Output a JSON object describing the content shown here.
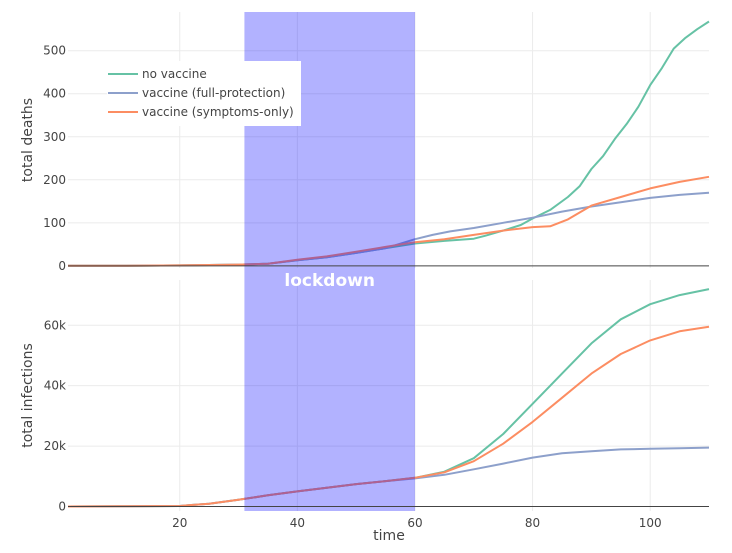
{
  "chart_data": {
    "type": "line",
    "shared_x_label": "time",
    "shaded_region": {
      "label": "lockdown",
      "x_start": 31,
      "x_end": 60,
      "color": "#0000ff",
      "opacity": 0.3
    },
    "legend": {
      "placement": "top-left"
    },
    "x_range": [
      1,
      110
    ],
    "x_ticks": [
      20,
      40,
      60,
      80,
      100
    ],
    "series_styles": [
      {
        "name": "no vaccine",
        "color": "#66c2a5"
      },
      {
        "name": "vaccine (full-protection)",
        "color": "#8da0cb"
      },
      {
        "name": "vaccine (symptoms-only)",
        "color": "#fc8d62"
      }
    ],
    "subplots": [
      {
        "id": "deaths",
        "ylabel": "total deaths",
        "ylim": [
          -5,
          590
        ],
        "yticks": [
          0,
          100,
          200,
          300,
          400,
          500
        ],
        "ytick_labels": [
          "0",
          "100",
          "200",
          "300",
          "400",
          "500"
        ],
        "series": [
          {
            "name": "no vaccine",
            "x": [
              1,
              10,
              20,
              25,
              30,
              35,
              40,
              45,
              50,
              55,
              60,
              65,
              70,
              72,
              75,
              78,
              80,
              83,
              86,
              88,
              90,
              92,
              94,
              96,
              98,
              100,
              102,
              104,
              106,
              108,
              110
            ],
            "y": [
              0,
              0,
              1,
              2,
              3,
              5,
              13,
              20,
              30,
              41,
              52,
              58,
              63,
              70,
              82,
              95,
              110,
              130,
              160,
              185,
              225,
              255,
              295,
              330,
              370,
              420,
              460,
              505,
              530,
              550,
              568
            ]
          },
          {
            "name": "vaccine (full-protection)",
            "x": [
              1,
              10,
              20,
              25,
              30,
              35,
              40,
              45,
              50,
              55,
              60,
              63,
              66,
              70,
              75,
              80,
              85,
              90,
              95,
              100,
              105,
              110
            ],
            "y": [
              0,
              0,
              1,
              2,
              3,
              5,
              13,
              20,
              30,
              41,
              62,
              72,
              80,
              88,
              100,
              112,
              126,
              138,
              148,
              158,
              165,
              170
            ]
          },
          {
            "name": "vaccine (symptoms-only)",
            "x": [
              1,
              10,
              20,
              25,
              30,
              35,
              40,
              45,
              50,
              55,
              60,
              65,
              70,
              75,
              80,
              83,
              86,
              90,
              95,
              100,
              105,
              110
            ],
            "y": [
              0,
              0,
              1,
              2,
              3,
              5,
              14,
              22,
              33,
              44,
              55,
              62,
              72,
              82,
              90,
              92,
              108,
              140,
              160,
              180,
              195,
              207
            ]
          }
        ]
      },
      {
        "id": "infections",
        "ylabel": "total infections",
        "ylim": [
          -1500,
          75000
        ],
        "yticks": [
          0,
          20000,
          40000,
          60000
        ],
        "ytick_labels": [
          "0",
          "20k",
          "40k",
          "60k"
        ],
        "series": [
          {
            "name": "no vaccine",
            "x": [
              1,
              10,
              20,
              22,
              25,
              30,
              35,
              40,
              45,
              50,
              55,
              60,
              65,
              70,
              75,
              80,
              85,
              90,
              95,
              100,
              105,
              110
            ],
            "y": [
              0,
              50,
              150,
              500,
              900,
              2200,
              3700,
              5000,
              6200,
              7400,
              8400,
              9500,
              11500,
              16000,
              24000,
              34000,
              44000,
              54000,
              62000,
              67000,
              70000,
              72000
            ]
          },
          {
            "name": "vaccine (full-protection)",
            "x": [
              1,
              10,
              20,
              22,
              25,
              30,
              35,
              40,
              45,
              50,
              55,
              60,
              65,
              70,
              75,
              80,
              85,
              90,
              95,
              100,
              105,
              110
            ],
            "y": [
              0,
              50,
              150,
              500,
              900,
              2200,
              3700,
              5000,
              6200,
              7400,
              8400,
              9300,
              10500,
              12300,
              14200,
              16200,
              17600,
              18300,
              18900,
              19100,
              19300,
              19500
            ]
          },
          {
            "name": "vaccine (symptoms-only)",
            "x": [
              1,
              10,
              20,
              22,
              25,
              30,
              35,
              40,
              45,
              50,
              55,
              60,
              65,
              70,
              75,
              80,
              85,
              90,
              95,
              100,
              105,
              110
            ],
            "y": [
              0,
              50,
              150,
              500,
              900,
              2200,
              3700,
              5000,
              6200,
              7400,
              8400,
              9500,
              11300,
              15000,
              20800,
              28000,
              36000,
              44000,
              50500,
              55000,
              58000,
              59500
            ]
          }
        ]
      }
    ]
  }
}
